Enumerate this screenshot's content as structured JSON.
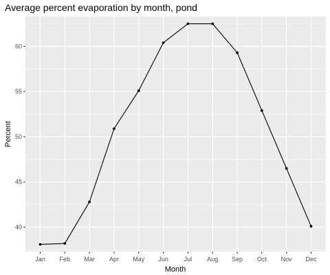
{
  "chart_data": {
    "type": "line",
    "title": "Average percent evaporation by month, pond",
    "xlabel": "Month",
    "ylabel": "Percent",
    "categories": [
      "Jan",
      "Feb",
      "Mar",
      "Apr",
      "May",
      "Jun",
      "Jul",
      "Aug",
      "Sep",
      "Oct",
      "Nov",
      "Dec"
    ],
    "values": [
      38.1,
      38.2,
      42.8,
      50.9,
      55.1,
      60.4,
      62.5,
      62.5,
      59.3,
      52.9,
      46.5,
      40.1
    ],
    "ylim": [
      37.3,
      63.3
    ],
    "yticks": [
      40,
      45,
      50,
      55,
      60
    ],
    "grid": true,
    "colors": {
      "panel": "#ebebeb",
      "grid": "#ffffff",
      "line": "#000000",
      "tick_text": "#4d4d4d"
    }
  }
}
